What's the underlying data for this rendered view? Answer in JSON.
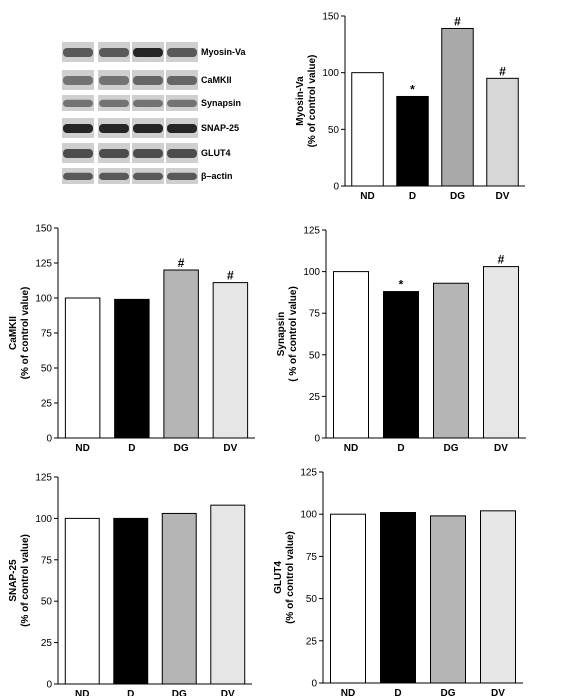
{
  "western_blot": {
    "labels": [
      "Myosin-Va",
      "CaMKII",
      "Synapsin",
      "SNAP-25",
      "GLUT4",
      "β–actin"
    ]
  },
  "chart_data": [
    {
      "type": "bar",
      "categories": [
        "ND",
        "D",
        "DG",
        "DV"
      ],
      "values": [
        100,
        79,
        139,
        95
      ],
      "ylabel_line1": "Myosin-Va",
      "ylabel_line2": "(% of control value)",
      "ylim": [
        0,
        150
      ],
      "yticks": [
        0,
        50,
        100,
        150
      ],
      "significance": [
        "",
        "*",
        "#",
        "#"
      ],
      "bar_colors": [
        "#ffffff",
        "#000000",
        "#a9a9a9",
        "#d7d7d7"
      ]
    },
    {
      "type": "bar",
      "categories": [
        "ND",
        "D",
        "DG",
        "DV"
      ],
      "values": [
        100,
        99,
        120,
        111
      ],
      "ylabel_line1": "CaMKII",
      "ylabel_line2": "(% of control value)",
      "ylim": [
        0,
        150
      ],
      "yticks": [
        0,
        25,
        50,
        75,
        100,
        125,
        150
      ],
      "significance": [
        "",
        "",
        "#",
        "#"
      ],
      "bar_colors": [
        "#ffffff",
        "#000000",
        "#b5b5b5",
        "#e6e6e6"
      ]
    },
    {
      "type": "bar",
      "categories": [
        "ND",
        "D",
        "DG",
        "DV"
      ],
      "values": [
        100,
        88,
        93,
        103
      ],
      "ylabel_line1": "Synapsin",
      "ylabel_line2": "( % of control value)",
      "ylim": [
        0,
        125
      ],
      "yticks": [
        0,
        25,
        50,
        75,
        100,
        125
      ],
      "significance": [
        "",
        "*",
        "",
        "#"
      ],
      "bar_colors": [
        "#ffffff",
        "#000000",
        "#b5b5b5",
        "#e6e6e6"
      ]
    },
    {
      "type": "bar",
      "categories": [
        "ND",
        "D",
        "DG",
        "DV"
      ],
      "values": [
        100,
        100,
        103,
        108
      ],
      "ylabel_line1": "SNAP-25",
      "ylabel_line2": "(% of control value)",
      "ylim": [
        0,
        125
      ],
      "yticks": [
        0,
        25,
        50,
        75,
        100,
        125
      ],
      "significance": [
        "",
        "",
        "",
        ""
      ],
      "bar_colors": [
        "#ffffff",
        "#000000",
        "#b5b5b5",
        "#e6e6e6"
      ]
    },
    {
      "type": "bar",
      "categories": [
        "ND",
        "D",
        "DG",
        "DV"
      ],
      "values": [
        100,
        101,
        99,
        102
      ],
      "ylabel_line1": "GLUT4",
      "ylabel_line2": "(% of control value)",
      "ylim": [
        0,
        125
      ],
      "yticks": [
        0,
        25,
        50,
        75,
        100,
        125
      ],
      "significance": [
        "",
        "",
        "",
        ""
      ],
      "bar_colors": [
        "#ffffff",
        "#000000",
        "#b5b5b5",
        "#e6e6e6"
      ]
    }
  ]
}
